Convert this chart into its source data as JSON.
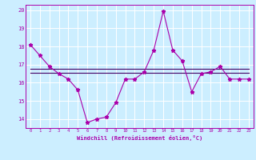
{
  "xlabel": "Windchill (Refroidissement éolien,°C)",
  "bg_color": "#cceeff",
  "line_color": "#aa00aa",
  "avg_line_color": "#440066",
  "grid_color": "#ffffff",
  "x_values": [
    0,
    1,
    2,
    3,
    4,
    5,
    6,
    7,
    8,
    9,
    10,
    11,
    12,
    13,
    14,
    15,
    16,
    17,
    18,
    19,
    20,
    21,
    22,
    23
  ],
  "y_main": [
    18.1,
    17.5,
    16.9,
    16.5,
    16.2,
    15.6,
    13.8,
    14.0,
    14.1,
    14.9,
    16.2,
    16.2,
    16.6,
    17.8,
    19.95,
    17.8,
    17.2,
    15.5,
    16.5,
    16.6,
    16.9,
    16.2,
    16.2,
    16.2
  ],
  "y_avg1": [
    16.75,
    16.75,
    16.75,
    16.75,
    16.75,
    16.75,
    16.75,
    16.75,
    16.75,
    16.75,
    16.75,
    16.75,
    16.75,
    16.75,
    16.75,
    16.75,
    16.75,
    16.75,
    16.75,
    16.75,
    16.75,
    16.75,
    16.75,
    16.75
  ],
  "y_avg2": [
    16.55,
    16.55,
    16.55,
    16.55,
    16.55,
    16.55,
    16.55,
    16.55,
    16.55,
    16.55,
    16.55,
    16.55,
    16.55,
    16.55,
    16.55,
    16.55,
    16.55,
    16.55,
    16.55,
    16.55,
    16.55,
    16.55,
    16.55,
    16.55
  ],
  "ylim": [
    13.5,
    20.3
  ],
  "xlim": [
    -0.5,
    23.5
  ],
  "xticks": [
    0,
    1,
    2,
    3,
    4,
    5,
    6,
    7,
    8,
    9,
    10,
    11,
    12,
    13,
    14,
    15,
    16,
    17,
    18,
    19,
    20,
    21,
    22,
    23
  ],
  "yticks": [
    14,
    15,
    16,
    17,
    18,
    19,
    20
  ]
}
